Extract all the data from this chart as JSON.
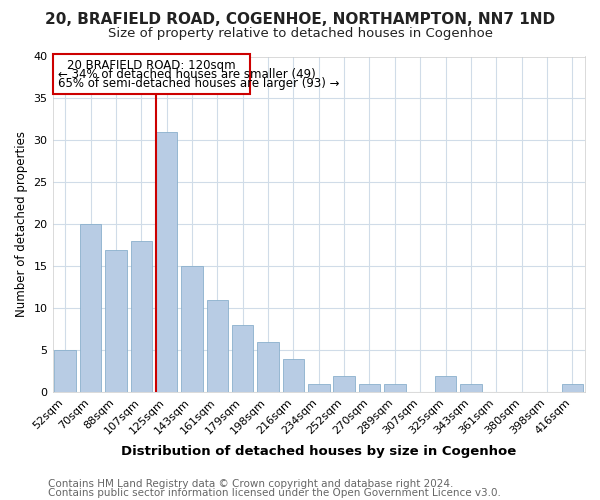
{
  "title": "20, BRAFIELD ROAD, COGENHOE, NORTHAMPTON, NN7 1ND",
  "subtitle": "Size of property relative to detached houses in Cogenhoe",
  "xlabel": "Distribution of detached houses by size in Cogenhoe",
  "ylabel": "Number of detached properties",
  "categories": [
    "52sqm",
    "70sqm",
    "88sqm",
    "107sqm",
    "125sqm",
    "143sqm",
    "161sqm",
    "179sqm",
    "198sqm",
    "216sqm",
    "234sqm",
    "252sqm",
    "270sqm",
    "289sqm",
    "307sqm",
    "325sqm",
    "343sqm",
    "361sqm",
    "380sqm",
    "398sqm",
    "416sqm"
  ],
  "values": [
    5,
    20,
    17,
    18,
    31,
    15,
    11,
    8,
    6,
    4,
    1,
    2,
    1,
    1,
    0,
    2,
    1,
    0,
    0,
    0,
    1
  ],
  "bar_color": "#b8cce4",
  "bar_edge_color": "#8ab0cc",
  "marker_label": "20 BRAFIELD ROAD: 120sqm",
  "annotation_line1": "← 34% of detached houses are smaller (49)",
  "annotation_line2": "65% of semi-detached houses are larger (93) →",
  "marker_color": "#cc0000",
  "box_edge_color": "#cc0000",
  "ylim": [
    0,
    40
  ],
  "yticks": [
    0,
    5,
    10,
    15,
    20,
    25,
    30,
    35,
    40
  ],
  "footer_line1": "Contains HM Land Registry data © Crown copyright and database right 2024.",
  "footer_line2": "Contains public sector information licensed under the Open Government Licence v3.0.",
  "bg_color": "#ffffff",
  "plot_bg_color": "#ffffff",
  "grid_color": "#d0dce8",
  "title_fontsize": 11,
  "subtitle_fontsize": 9.5,
  "xlabel_fontsize": 9.5,
  "ylabel_fontsize": 8.5,
  "tick_fontsize": 8,
  "footer_fontsize": 7.5,
  "annotation_fontsize": 8.5
}
